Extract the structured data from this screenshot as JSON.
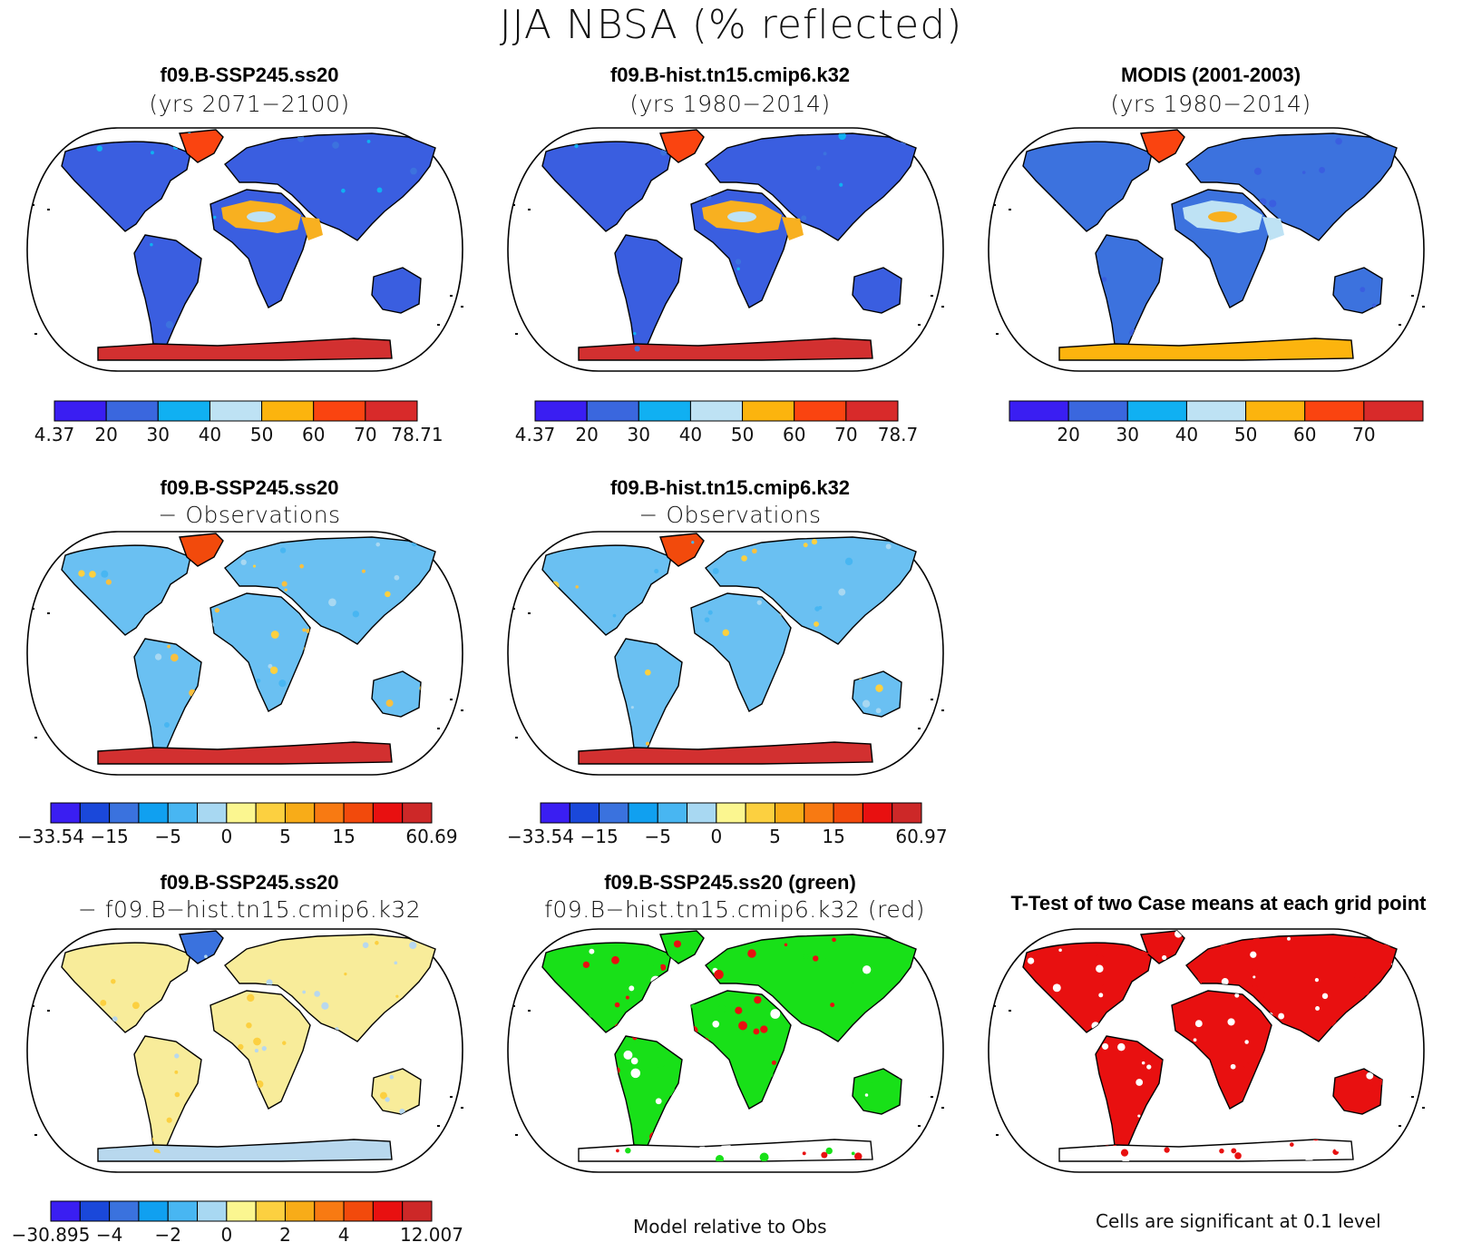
{
  "title": "JJA NBSA (% reflected)",
  "colors": {
    "abs": [
      "#3a1ef2",
      "#3a67de",
      "#10b0f2",
      "#bee2f4",
      "#fcb40e",
      "#fa4410",
      "#d82a2a"
    ],
    "diff": [
      "#3a1ef2",
      "#1a48da",
      "#3a72de",
      "#10a0f0",
      "#48b6f2",
      "#a8d8f2",
      "#fbf690",
      "#fcd040",
      "#f8ac18",
      "#f87a12",
      "#f24a0c",
      "#e81010",
      "#cd2828"
    ],
    "land_low": "#3a5ee0",
    "land_med": "#3c72de",
    "desert": "#f8b020",
    "ice": "#d23030",
    "ice_obs": "#fcb40e",
    "diff_land": "#6ac0f2",
    "diff_warm": "#f8c040",
    "diff3_land": "#f8ec9a",
    "diff3_cool": "#b8d8ee",
    "green": "#18e018",
    "red": "#e81010"
  },
  "panels": [
    {
      "id": "p1",
      "line1": "f09.B-SSP245.ss20",
      "line2": "(yrs 2071−2100)",
      "colorbar": [
        "4.37",
        "20",
        "30",
        "40",
        "50",
        "60",
        "70",
        "78.71"
      ]
    },
    {
      "id": "p2",
      "line1": "f09.B-hist.tn15.cmip6.k32",
      "line2": "(yrs 1980−2014)",
      "colorbar": [
        "4.37",
        "20",
        "30",
        "40",
        "50",
        "60",
        "70",
        "78.7"
      ]
    },
    {
      "id": "p3",
      "line1": "MODIS (2001-2003)",
      "line2": "(yrs 1980−2014)",
      "colorbar": [
        "20",
        "30",
        "40",
        "50",
        "60",
        "70"
      ]
    },
    {
      "id": "p4",
      "line1": "f09.B-SSP245.ss20",
      "line2": "− Observations",
      "colorbar": [
        "−33.54",
        "−15",
        "−5",
        "0",
        "5",
        "15",
        "60.69"
      ]
    },
    {
      "id": "p5",
      "line1": "f09.B-hist.tn15.cmip6.k32",
      "line2": "− Observations",
      "colorbar": [
        "−33.54",
        "−15",
        "−5",
        "0",
        "5",
        "15",
        "60.97"
      ]
    },
    {
      "id": "p6",
      "line1": "f09.B-SSP245.ss20",
      "line2": "− f09.B−hist.tn15.cmip6.k32",
      "colorbar": [
        "−30.895",
        "−4",
        "−2",
        "0",
        "2",
        "4",
        "12.007"
      ]
    },
    {
      "id": "p7",
      "line1": "f09.B-SSP245.ss20 (green)",
      "line2": "f09.B−hist.tn15.cmip6.k32 (red)"
    },
    {
      "id": "p8",
      "line1": "T-Test of two Case means at each grid point"
    }
  ],
  "footers": {
    "model_relative": "Model relative to Obs",
    "significance": "Cells are significant at 0.1 level"
  }
}
